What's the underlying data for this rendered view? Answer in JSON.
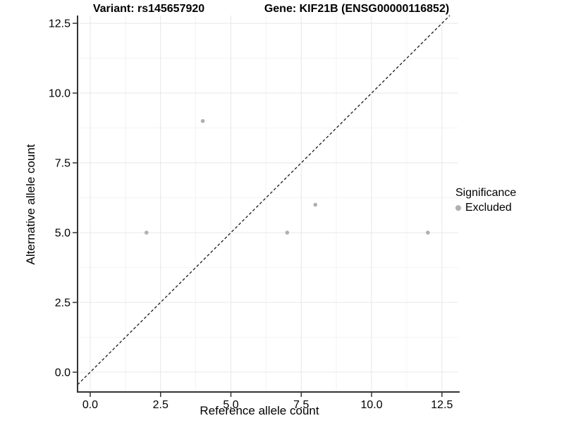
{
  "titles": {
    "left": "Variant: rs145657920",
    "right": "Gene: KIF21B (ENSG00000116852)"
  },
  "chart_data": {
    "type": "scatter",
    "xlabel": "Reference allele count",
    "ylabel": "Alternative allele count",
    "xlim": [
      -0.45,
      13.08
    ],
    "ylim": [
      -0.71,
      12.78
    ],
    "x_ticks": {
      "values": [
        0,
        2.5,
        5,
        7.5,
        10,
        12.5
      ],
      "labels": [
        "0.0",
        "2.5",
        "5.0",
        "7.5",
        "10.0",
        "12.5"
      ]
    },
    "y_ticks": {
      "values": [
        0,
        2.5,
        5,
        7.5,
        10,
        12.5
      ],
      "labels": [
        "0.0",
        "2.5",
        "5.0",
        "7.5",
        "10.0",
        "12.5"
      ]
    },
    "minor_ticks": [
      1.25,
      3.75,
      6.25,
      8.75,
      11.25
    ],
    "grid": true,
    "identity_line": {
      "style": "dashed",
      "color": "#1a1a1a",
      "equation": "y = x"
    },
    "series": [
      {
        "name": "Excluded",
        "color": "#b0b0b0",
        "points": [
          {
            "x": 2,
            "y": 5
          },
          {
            "x": 4,
            "y": 9
          },
          {
            "x": 7,
            "y": 5
          },
          {
            "x": 8,
            "y": 6
          },
          {
            "x": 12,
            "y": 5
          }
        ]
      }
    ],
    "legend": {
      "position": "right",
      "title": "Significance",
      "entries": [
        {
          "label": "Excluded",
          "color": "#b0b0b0"
        }
      ]
    }
  },
  "colors": {
    "background": "#ffffff",
    "grid_major": "#e7e7e7",
    "grid_minor": "#f3f3f3",
    "axis_line": "#333333",
    "tick_mark": "#333333",
    "point": "#b0b0b0",
    "text": "#000000"
  }
}
